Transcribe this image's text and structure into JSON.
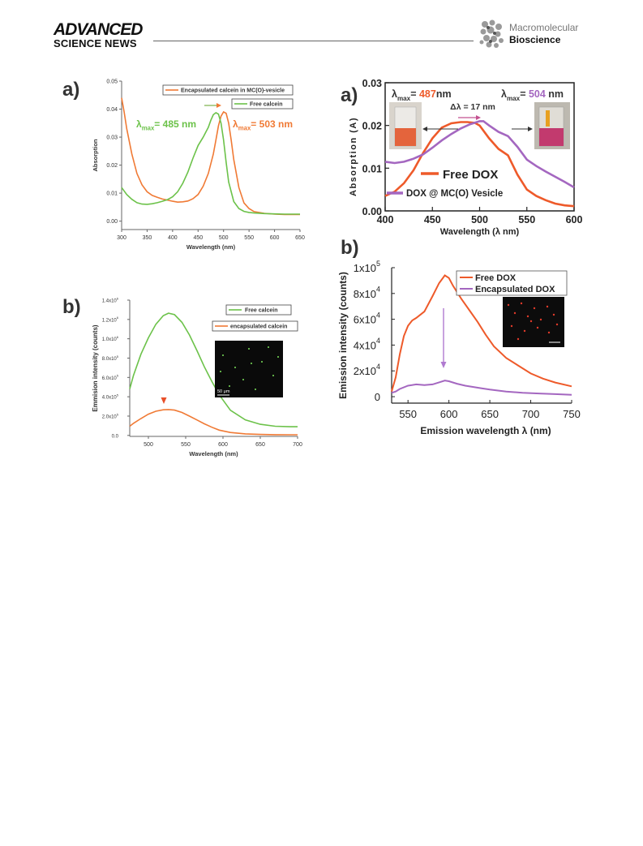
{
  "header": {
    "brand_main": "ADVANCED",
    "brand_sub": "SCIENCE NEWS",
    "journal_top": "Macromolecular",
    "journal_bottom": "Bioscience",
    "logo_icon": "molecule-icon"
  },
  "chart_data": [
    {
      "id": "left_a",
      "type": "line",
      "panel_label": "a)",
      "xlabel": "Wavelength (nm)",
      "ylabel": "Absorption",
      "xlim": [
        300,
        650
      ],
      "ylim": [
        -0.003,
        0.05
      ],
      "xticks": [
        "300",
        "350",
        "400",
        "450",
        "500",
        "550",
        "600",
        "650"
      ],
      "yticks": [
        "0.00",
        "0.01",
        "0.02",
        "0.03",
        "0.04",
        "0.05"
      ],
      "legend": [
        "Encapsulated calcein in MC(O)-vesicle",
        "Free calcein"
      ],
      "annotation_green": "485 nm",
      "annotation_orange": "503 nm",
      "lambda_symbol": "λ",
      "lambda_sub": "max",
      "colors": {
        "orange": "#f07a35",
        "green": "#6cc24a"
      },
      "series": [
        {
          "name": "Encapsulated calcein in MC(O)-vesicle",
          "color": "#f07a35",
          "x": [
            300,
            305,
            310,
            320,
            330,
            340,
            350,
            360,
            370,
            380,
            390,
            400,
            410,
            420,
            430,
            440,
            450,
            460,
            470,
            480,
            485,
            490,
            495,
            500,
            505,
            510,
            515,
            520,
            530,
            540,
            550,
            560,
            580,
            600,
            620,
            650
          ],
          "y": [
            0.044,
            0.039,
            0.033,
            0.024,
            0.017,
            0.013,
            0.0105,
            0.0092,
            0.0085,
            0.0079,
            0.0075,
            0.0071,
            0.0068,
            0.0069,
            0.0072,
            0.008,
            0.0095,
            0.0125,
            0.017,
            0.024,
            0.029,
            0.034,
            0.0375,
            0.039,
            0.0385,
            0.035,
            0.029,
            0.022,
            0.012,
            0.0065,
            0.0045,
            0.0034,
            0.0028,
            0.0025,
            0.0024,
            0.0024
          ]
        },
        {
          "name": "Free calcein",
          "color": "#6cc24a",
          "x": [
            300,
            310,
            320,
            330,
            340,
            350,
            360,
            370,
            380,
            390,
            400,
            410,
            420,
            430,
            440,
            450,
            460,
            470,
            475,
            480,
            485,
            490,
            495,
            500,
            505,
            510,
            520,
            530,
            540,
            550,
            560,
            580,
            600,
            620,
            650
          ],
          "y": [
            0.012,
            0.0095,
            0.0078,
            0.0066,
            0.0061,
            0.006,
            0.0062,
            0.0066,
            0.0071,
            0.0077,
            0.0087,
            0.0105,
            0.0135,
            0.0175,
            0.0225,
            0.027,
            0.03,
            0.0335,
            0.036,
            0.038,
            0.0387,
            0.0382,
            0.035,
            0.029,
            0.021,
            0.014,
            0.007,
            0.0045,
            0.0035,
            0.0031,
            0.0029,
            0.0027,
            0.0026,
            0.0025,
            0.0025
          ]
        }
      ]
    },
    {
      "id": "left_b",
      "type": "line",
      "panel_label": "b)",
      "xlabel": "Wavelength (nm)",
      "ylabel": "Emmision intensity (counts)",
      "xlim": [
        475,
        700
      ],
      "ylim": [
        -10000,
        1400000
      ],
      "xticks": [
        "500",
        "550",
        "600",
        "650",
        "700"
      ],
      "yticks": [
        "0.0",
        "2.0x10",
        "4.0x10",
        "6.0x10",
        "8.0x10",
        "1.0x10",
        "1.2x10",
        "1.4x10"
      ],
      "ytick_exps": [
        "",
        "5",
        "5",
        "5",
        "5",
        "6",
        "6",
        "6"
      ],
      "legend": [
        "Free calcein",
        "encapsulated calcein"
      ],
      "inset_scale": "50 μm",
      "colors": {
        "orange": "#f07a35",
        "green": "#6cc24a"
      },
      "series": [
        {
          "name": "Free calcein",
          "color": "#6cc24a",
          "x": [
            475,
            480,
            490,
            500,
            510,
            520,
            527,
            535,
            545,
            555,
            565,
            575,
            585,
            595,
            610,
            630,
            650,
            670,
            690,
            700
          ],
          "y": [
            480000,
            620000,
            840000,
            1010000,
            1150000,
            1240000,
            1265000,
            1250000,
            1170000,
            1040000,
            880000,
            710000,
            560000,
            420000,
            260000,
            160000,
            115000,
            95000,
            90000,
            90000
          ]
        },
        {
          "name": "encapsulated calcein",
          "color": "#f07a35",
          "x": [
            475,
            480,
            490,
            500,
            510,
            520,
            527,
            535,
            545,
            555,
            565,
            575,
            585,
            595,
            610,
            630,
            650,
            670,
            690,
            700
          ],
          "y": [
            95000,
            125000,
            175000,
            220000,
            250000,
            265000,
            268000,
            262000,
            238000,
            200000,
            160000,
            120000,
            85000,
            55000,
            30000,
            16000,
            10000,
            8000,
            7000,
            7000
          ]
        }
      ]
    },
    {
      "id": "right_a",
      "type": "line",
      "panel_label": "a)",
      "xlabel": "Wavelength (λ nm)",
      "ylabel": "Absorption (A)",
      "xlim": [
        400,
        600
      ],
      "ylim": [
        0.0,
        0.03
      ],
      "xticks": [
        "400",
        "450",
        "500",
        "550",
        "600"
      ],
      "yticks": [
        "0.00",
        "0.01",
        "0.02",
        "0.03"
      ],
      "legend": [
        "Free DOX",
        "DOX @ MC(O) Vesicle"
      ],
      "annotation_red": "487",
      "annotation_red_unit": "nm",
      "annotation_purple": "504",
      "annotation_purple_unit": "nm",
      "delta_label": "Δλ = 17 nm",
      "lambda_symbol": "λ",
      "lambda_sub": "max",
      "colors": {
        "red": "#ee5a2a",
        "purple": "#a467c0"
      },
      "series": [
        {
          "name": "Free DOX",
          "color": "#ee5a2a",
          "x": [
            400,
            410,
            420,
            430,
            440,
            450,
            460,
            470,
            480,
            487,
            495,
            500,
            510,
            520,
            530,
            540,
            550,
            560,
            570,
            580,
            590,
            600
          ],
          "y": [
            0.0035,
            0.0045,
            0.0065,
            0.0095,
            0.0135,
            0.017,
            0.0195,
            0.0205,
            0.0208,
            0.0208,
            0.0206,
            0.02,
            0.017,
            0.0145,
            0.013,
            0.0085,
            0.005,
            0.0035,
            0.0025,
            0.0017,
            0.0013,
            0.0011
          ]
        },
        {
          "name": "DOX @ MC(O) Vesicle",
          "color": "#a467c0",
          "x": [
            400,
            410,
            420,
            430,
            440,
            450,
            460,
            470,
            480,
            490,
            500,
            504,
            510,
            520,
            530,
            540,
            550,
            560,
            570,
            580,
            590,
            600
          ],
          "y": [
            0.0115,
            0.0112,
            0.0115,
            0.0122,
            0.0132,
            0.0148,
            0.0165,
            0.018,
            0.0193,
            0.0203,
            0.021,
            0.021,
            0.02,
            0.0185,
            0.0175,
            0.015,
            0.012,
            0.0105,
            0.0092,
            0.008,
            0.0068,
            0.0055
          ]
        }
      ]
    },
    {
      "id": "right_b",
      "type": "line",
      "panel_label": "b)",
      "xlabel": "Emission wavelength λ (nm)",
      "ylabel": "Emission intensity (counts)",
      "xlim": [
        530,
        750
      ],
      "ylim": [
        -5000,
        100000
      ],
      "xticks": [
        "550",
        "600",
        "650",
        "700",
        "750"
      ],
      "yticks": [
        "0",
        "2x10",
        "4x10",
        "6x10",
        "8x10",
        "1x10"
      ],
      "ytick_exps": [
        "",
        "4",
        "4",
        "4",
        "4",
        "5"
      ],
      "legend": [
        "Free DOX",
        "Encapsulated DOX"
      ],
      "colors": {
        "red": "#ee5a2a",
        "purple": "#a467c0"
      },
      "series": [
        {
          "name": "Free DOX",
          "color": "#ee5a2a",
          "x": [
            530,
            535,
            540,
            545,
            550,
            555,
            560,
            570,
            580,
            588,
            595,
            600,
            605,
            615,
            625,
            635,
            645,
            655,
            670,
            685,
            700,
            715,
            730,
            750
          ],
          "y": [
            4000,
            15000,
            33000,
            47000,
            55000,
            59000,
            61000,
            66000,
            78000,
            88000,
            94000,
            92000,
            86000,
            76000,
            67000,
            58000,
            48000,
            39000,
            30000,
            24000,
            18000,
            14000,
            11000,
            8000
          ]
        },
        {
          "name": "Encapsulated DOX",
          "color": "#a467c0",
          "x": [
            530,
            535,
            540,
            550,
            560,
            570,
            580,
            590,
            595,
            600,
            610,
            620,
            630,
            640,
            650,
            670,
            690,
            710,
            730,
            750
          ],
          "y": [
            3000,
            4000,
            6000,
            8500,
            9500,
            9000,
            9500,
            11500,
            12500,
            12000,
            10000,
            8500,
            7500,
            6500,
            5500,
            4000,
            3000,
            2500,
            2000,
            1500
          ]
        }
      ]
    }
  ]
}
